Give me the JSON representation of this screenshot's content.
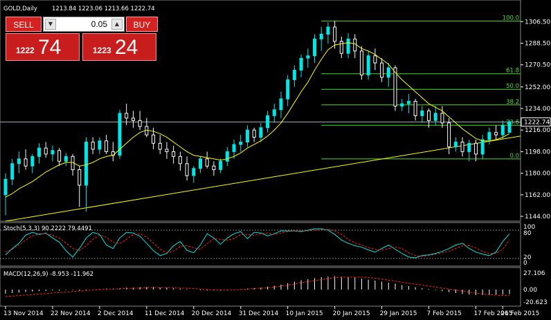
{
  "header": {
    "symbol": "GOLD,Daily",
    "ohlc": "1213.84 1223.06 1213.66 1222.74"
  },
  "trade_panel": {
    "sell_label": "SELL",
    "buy_label": "BUY",
    "lot_value": "0.05",
    "sell_price_small": "1222",
    "sell_price_big": "74",
    "buy_price_small": "1223",
    "buy_price_big": "24"
  },
  "price_axis": {
    "labels": [
      "1306.50",
      "1288.50",
      "1270.50",
      "1252.00",
      "1234.00",
      "1216.00",
      "1198.00",
      "1180.00",
      "1162.00",
      "1144.00"
    ]
  },
  "current_price": "1222.74",
  "fibonacci": {
    "levels": [
      "100.0",
      "61.8",
      "50.0",
      "38.2",
      "23.6",
      "0.0"
    ]
  },
  "stoch": {
    "label": "Stoch(5,3,3) 90.2222 79.4491",
    "axis": [
      "100",
      "80",
      "20",
      "0"
    ]
  },
  "macd": {
    "label": "MACD(12,26,9) -8.953 -11.962",
    "axis": [
      "27.106",
      "0.00",
      "-20.623"
    ]
  },
  "time_axis": {
    "labels": [
      "13 Nov 2014",
      "22 Nov 2014",
      "2 Dec 2014",
      "11 Dec 2014",
      "20 Dec 2014",
      "31 Dec 2014",
      "10 Jan 2015",
      "20 Jan 2015",
      "29 Jan 2015",
      "7 Feb 2015",
      "17 Feb 2015",
      "26 Feb 2015"
    ]
  },
  "colors": {
    "bull": "#00e5e5",
    "bear": "#ffffff",
    "ma": "#ffff00",
    "fib": "#4fdc2a",
    "signal": "#ff2020",
    "trade_red": "#d22222"
  },
  "chart_data": {
    "type": "candlestick",
    "ylim": [
      1140,
      1313
    ],
    "x": [
      "13 Nov 2014",
      "14 Nov 2014",
      "17 Nov 2014",
      "18 Nov 2014",
      "19 Nov 2014",
      "20 Nov 2014",
      "21 Nov 2014",
      "24 Nov 2014",
      "25 Nov 2014",
      "26 Nov 2014",
      "27 Nov 2014",
      "28 Nov 2014",
      "1 Dec 2014",
      "2 Dec 2014",
      "3 Dec 2014",
      "4 Dec 2014",
      "5 Dec 2014",
      "8 Dec 2014",
      "9 Dec 2014",
      "10 Dec 2014",
      "11 Dec 2014",
      "12 Dec 2014",
      "15 Dec 2014",
      "16 Dec 2014",
      "17 Dec 2014",
      "18 Dec 2014",
      "19 Dec 2014",
      "22 Dec 2014",
      "23 Dec 2014",
      "24 Dec 2014",
      "26 Dec 2014",
      "29 Dec 2014",
      "30 Dec 2014",
      "31 Dec 2014",
      "2 Jan 2015",
      "5 Jan 2015",
      "6 Jan 2015",
      "7 Jan 2015",
      "8 Jan 2015",
      "9 Jan 2015",
      "12 Jan 2015",
      "13 Jan 2015",
      "14 Jan 2015",
      "15 Jan 2015",
      "16 Jan 2015",
      "19 Jan 2015",
      "20 Jan 2015",
      "21 Jan 2015",
      "22 Jan 2015",
      "23 Jan 2015",
      "26 Jan 2015",
      "27 Jan 2015",
      "28 Jan 2015",
      "29 Jan 2015",
      "30 Jan 2015",
      "2 Feb 2015",
      "3 Feb 2015",
      "4 Feb 2015",
      "5 Feb 2015",
      "6 Feb 2015",
      "9 Feb 2015",
      "10 Feb 2015",
      "11 Feb 2015",
      "12 Feb 2015",
      "13 Feb 2015",
      "16 Feb 2015",
      "17 Feb 2015",
      "18 Feb 2015",
      "19 Feb 2015",
      "20 Feb 2015",
      "23 Feb 2015",
      "24 Feb 2015",
      "25 Feb 2015",
      "26 Feb 2015",
      "27 Feb 2015",
      "2 Mar 2015"
    ],
    "ohlc": [
      [
        1162,
        1180,
        1145,
        1175
      ],
      [
        1175,
        1192,
        1170,
        1188
      ],
      [
        1188,
        1198,
        1180,
        1192
      ],
      [
        1192,
        1200,
        1183,
        1186
      ],
      [
        1186,
        1196,
        1180,
        1194
      ],
      [
        1194,
        1205,
        1188,
        1201
      ],
      [
        1201,
        1206,
        1193,
        1196
      ],
      [
        1196,
        1203,
        1190,
        1199
      ],
      [
        1199,
        1201,
        1186,
        1190
      ],
      [
        1190,
        1197,
        1186,
        1194
      ],
      [
        1194,
        1196,
        1178,
        1183
      ],
      [
        1183,
        1186,
        1152,
        1170
      ],
      [
        1170,
        1210,
        1148,
        1206
      ],
      [
        1206,
        1210,
        1196,
        1200
      ],
      [
        1200,
        1210,
        1196,
        1207
      ],
      [
        1207,
        1212,
        1196,
        1198
      ],
      [
        1198,
        1206,
        1190,
        1195
      ],
      [
        1195,
        1233,
        1192,
        1230
      ],
      [
        1230,
        1238,
        1220,
        1226
      ],
      [
        1226,
        1232,
        1218,
        1224
      ],
      [
        1224,
        1232,
        1216,
        1219
      ],
      [
        1219,
        1226,
        1210,
        1212
      ],
      [
        1212,
        1218,
        1200,
        1205
      ],
      [
        1205,
        1212,
        1196,
        1200
      ],
      [
        1200,
        1206,
        1192,
        1198
      ],
      [
        1198,
        1203,
        1188,
        1194
      ],
      [
        1194,
        1198,
        1182,
        1188
      ],
      [
        1188,
        1194,
        1174,
        1178
      ],
      [
        1178,
        1186,
        1172,
        1184
      ],
      [
        1184,
        1194,
        1180,
        1192
      ],
      [
        1192,
        1198,
        1184,
        1186
      ],
      [
        1186,
        1190,
        1178,
        1183
      ],
      [
        1183,
        1192,
        1180,
        1190
      ],
      [
        1190,
        1202,
        1186,
        1198
      ],
      [
        1198,
        1208,
        1192,
        1204
      ],
      [
        1204,
        1212,
        1198,
        1206
      ],
      [
        1206,
        1220,
        1202,
        1216
      ],
      [
        1216,
        1218,
        1206,
        1210
      ],
      [
        1210,
        1222,
        1206,
        1218
      ],
      [
        1218,
        1232,
        1214,
        1228
      ],
      [
        1228,
        1238,
        1222,
        1233
      ],
      [
        1233,
        1248,
        1226,
        1242
      ],
      [
        1242,
        1262,
        1236,
        1258
      ],
      [
        1258,
        1270,
        1252,
        1266
      ],
      [
        1266,
        1279,
        1260,
        1276
      ],
      [
        1276,
        1284,
        1268,
        1278
      ],
      [
        1278,
        1296,
        1272,
        1292
      ],
      [
        1292,
        1302,
        1282,
        1296
      ],
      [
        1296,
        1306,
        1288,
        1302
      ],
      [
        1302,
        1307,
        1284,
        1290
      ],
      [
        1290,
        1294,
        1276,
        1280
      ],
      [
        1280,
        1297,
        1276,
        1292
      ],
      [
        1292,
        1296,
        1276,
        1282
      ],
      [
        1282,
        1286,
        1258,
        1262
      ],
      [
        1262,
        1282,
        1258,
        1278
      ],
      [
        1278,
        1284,
        1266,
        1272
      ],
      [
        1272,
        1276,
        1256,
        1260
      ],
      [
        1260,
        1272,
        1252,
        1268
      ],
      [
        1268,
        1270,
        1232,
        1236
      ],
      [
        1236,
        1242,
        1232,
        1238
      ],
      [
        1238,
        1246,
        1230,
        1240
      ],
      [
        1240,
        1242,
        1224,
        1228
      ],
      [
        1228,
        1236,
        1222,
        1232
      ],
      [
        1232,
        1234,
        1218,
        1224
      ],
      [
        1224,
        1236,
        1220,
        1230
      ],
      [
        1230,
        1236,
        1218,
        1222
      ],
      [
        1222,
        1226,
        1196,
        1202
      ],
      [
        1202,
        1210,
        1198,
        1206
      ],
      [
        1206,
        1210,
        1194,
        1198
      ],
      [
        1198,
        1208,
        1190,
        1205
      ],
      [
        1205,
        1208,
        1190,
        1196
      ],
      [
        1196,
        1212,
        1192,
        1208
      ],
      [
        1208,
        1218,
        1204,
        1214
      ],
      [
        1214,
        1220,
        1208,
        1212
      ],
      [
        1212,
        1224,
        1208,
        1220
      ],
      [
        1214,
        1224,
        1214,
        1223
      ]
    ],
    "ma": [
      1160,
      1163,
      1167,
      1170,
      1173,
      1177,
      1181,
      1184,
      1187,
      1189,
      1189,
      1186,
      1187,
      1189,
      1192,
      1194,
      1195,
      1200,
      1205,
      1210,
      1214,
      1216,
      1215,
      1213,
      1210,
      1206,
      1202,
      1198,
      1195,
      1194,
      1193,
      1192,
      1191,
      1192,
      1194,
      1197,
      1201,
      1204,
      1207,
      1211,
      1216,
      1222,
      1230,
      1239,
      1248,
      1256,
      1266,
      1275,
      1283,
      1287,
      1288,
      1289,
      1288,
      1284,
      1282,
      1279,
      1275,
      1271,
      1264,
      1258,
      1253,
      1248,
      1243,
      1238,
      1235,
      1232,
      1227,
      1222,
      1217,
      1213,
      1209,
      1207,
      1207,
      1208,
      1210,
      1213
    ],
    "fibonacci": {
      "high": 1307,
      "low": 1192,
      "levels": [
        [
          "100.0",
          1307
        ],
        [
          "61.8",
          1263
        ],
        [
          "50.0",
          1250
        ],
        [
          "38.2",
          1237
        ],
        [
          "23.6",
          1220
        ],
        [
          "0.0",
          1192
        ]
      ]
    },
    "trendline": [
      [
        "13 Nov 2014",
        1140
      ],
      [
        "2 Mar 2015",
        1211
      ]
    ],
    "stoch_k": [
      22,
      40,
      55,
      78,
      86,
      80,
      84,
      70,
      58,
      34,
      16,
      40,
      70,
      86,
      80,
      50,
      40,
      70,
      86,
      84,
      75,
      55,
      34,
      20,
      26,
      48,
      60,
      35,
      28,
      50,
      82,
      70,
      52,
      70,
      82,
      88,
      68,
      86,
      84,
      76,
      82,
      90,
      90,
      90,
      88,
      92,
      96,
      96,
      92,
      80,
      64,
      55,
      48,
      44,
      36,
      30,
      40,
      50,
      38,
      26,
      16,
      14,
      20,
      22,
      26,
      32,
      40,
      50,
      55,
      40,
      30,
      24,
      20,
      30,
      60,
      82
    ],
    "stoch_d": [
      30,
      38,
      50,
      64,
      76,
      82,
      82,
      78,
      70,
      56,
      40,
      34,
      48,
      66,
      78,
      72,
      58,
      54,
      66,
      80,
      82,
      72,
      56,
      38,
      28,
      32,
      46,
      48,
      42,
      38,
      54,
      68,
      66,
      64,
      68,
      80,
      80,
      78,
      82,
      84,
      80,
      84,
      88,
      90,
      90,
      90,
      92,
      94,
      94,
      90,
      80,
      66,
      56,
      50,
      42,
      38,
      36,
      40,
      44,
      40,
      28,
      20,
      18,
      20,
      24,
      28,
      32,
      40,
      48,
      48,
      42,
      32,
      26,
      26,
      38,
      64
    ],
    "macd_hist": [
      -8,
      -7,
      -6,
      -5,
      -4,
      -3,
      -3,
      -2,
      -2,
      -1,
      -1,
      -2,
      -1,
      0,
      1,
      2,
      2,
      3,
      4,
      4,
      5,
      5,
      5,
      4,
      4,
      3,
      2,
      1,
      0,
      -1,
      -2,
      -2,
      -2,
      -1,
      0,
      1,
      2,
      3,
      4,
      6,
      8,
      10,
      13,
      16,
      19,
      21,
      23,
      25,
      26,
      27,
      26,
      25,
      24,
      22,
      20,
      18,
      16,
      14,
      12,
      9,
      7,
      5,
      3,
      1,
      -1,
      -3,
      -5,
      -7,
      -9,
      -10,
      -11,
      -11,
      -11,
      -10,
      -10,
      -9
    ],
    "macd_signal": [
      -14,
      -13,
      -12,
      -11,
      -10,
      -9,
      -8,
      -7,
      -6,
      -5,
      -4,
      -3,
      -2,
      -1,
      0,
      1,
      1,
      2,
      2,
      3,
      3,
      4,
      4,
      4,
      4,
      4,
      3,
      3,
      2,
      1,
      0,
      -1,
      -1,
      -1,
      -1,
      0,
      1,
      2,
      3,
      4,
      5,
      7,
      9,
      11,
      14,
      16,
      18,
      20,
      22,
      24,
      25,
      25,
      25,
      25,
      24,
      23,
      21,
      19,
      17,
      15,
      13,
      11,
      9,
      7,
      5,
      3,
      1,
      -1,
      -3,
      -5,
      -7,
      -9,
      -10,
      -11,
      -12,
      -12
    ]
  }
}
